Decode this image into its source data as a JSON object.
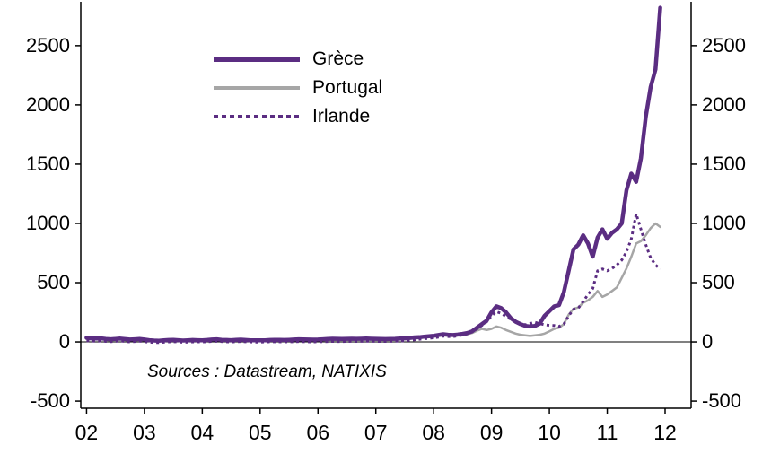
{
  "source_note": "Sources : Datastream, NATIXIS",
  "axes": {
    "ytick_labels": [
      "-500",
      "0",
      "500",
      "1000",
      "1500",
      "2000",
      "2500"
    ],
    "xtick_labels": [
      "02",
      "03",
      "04",
      "05",
      "06",
      "07",
      "08",
      "09",
      "10",
      "11",
      "12"
    ]
  },
  "chart_data": {
    "type": "line",
    "title": "",
    "xlabel": "",
    "ylabel": "",
    "grid": false,
    "legend_position": "top-left-inset",
    "x_start_year": 2002,
    "x_step": "monthly",
    "xlim": [
      2001.9,
      2012.45
    ],
    "ylim": [
      -560,
      2870
    ],
    "yticks": [
      -500,
      0,
      500,
      1000,
      1500,
      2000,
      2500
    ],
    "xticks": [
      2002,
      2003,
      2004,
      2005,
      2006,
      2007,
      2008,
      2009,
      2010,
      2011,
      2012
    ],
    "series": [
      {
        "name": "Grèce",
        "color": "#5b2d82",
        "style": "solid",
        "width": 4.5,
        "values": [
          35,
          30,
          28,
          30,
          25,
          22,
          25,
          28,
          24,
          20,
          22,
          25,
          20,
          15,
          12,
          10,
          14,
          16,
          18,
          15,
          12,
          14,
          16,
          15,
          14,
          16,
          20,
          22,
          18,
          16,
          15,
          17,
          19,
          16,
          14,
          13,
          13,
          14,
          16,
          18,
          17,
          16,
          18,
          20,
          22,
          21,
          20,
          19,
          20,
          22,
          25,
          27,
          26,
          25,
          26,
          27,
          26,
          27,
          28,
          27,
          26,
          25,
          24,
          25,
          26,
          28,
          30,
          34,
          38,
          40,
          44,
          48,
          52,
          58,
          65,
          60,
          58,
          62,
          68,
          75,
          90,
          120,
          150,
          180,
          250,
          300,
          285,
          250,
          200,
          170,
          150,
          135,
          130,
          135,
          155,
          220,
          260,
          300,
          310,
          420,
          600,
          780,
          820,
          900,
          830,
          720,
          880,
          950,
          870,
          920,
          950,
          1000,
          1280,
          1420,
          1350,
          1550,
          1900,
          2150,
          2300,
          2820
        ]
      },
      {
        "name": "Portugal",
        "color": "#a6a6a6",
        "style": "solid",
        "width": 2.5,
        "values": [
          25,
          22,
          20,
          22,
          18,
          16,
          18,
          20,
          17,
          15,
          16,
          18,
          15,
          12,
          10,
          8,
          10,
          12,
          14,
          12,
          10,
          11,
          13,
          12,
          11,
          12,
          14,
          15,
          13,
          12,
          11,
          12,
          13,
          12,
          11,
          10,
          10,
          11,
          12,
          13,
          12,
          12,
          13,
          14,
          15,
          14,
          13,
          13,
          14,
          15,
          16,
          17,
          16,
          16,
          17,
          18,
          17,
          18,
          19,
          18,
          18,
          17,
          17,
          18,
          19,
          20,
          22,
          26,
          30,
          32,
          36,
          40,
          45,
          50,
          55,
          52,
          50,
          54,
          58,
          64,
          75,
          95,
          110,
          100,
          110,
          130,
          120,
          100,
          85,
          70,
          60,
          55,
          50,
          55,
          60,
          70,
          90,
          110,
          120,
          150,
          230,
          280,
          290,
          330,
          350,
          380,
          430,
          380,
          400,
          430,
          460,
          540,
          620,
          720,
          830,
          850,
          900,
          960,
          1000,
          970
        ]
      },
      {
        "name": "Irlande",
        "color": "#5b2d82",
        "style": "dashed",
        "width": 3,
        "values": [
          10,
          8,
          5,
          8,
          4,
          2,
          5,
          8,
          4,
          0,
          3,
          6,
          2,
          -2,
          -5,
          -6,
          -3,
          0,
          2,
          0,
          -3,
          -2,
          0,
          1,
          0,
          2,
          4,
          5,
          3,
          1,
          0,
          2,
          3,
          1,
          0,
          -1,
          -2,
          0,
          1,
          2,
          1,
          0,
          1,
          2,
          3,
          2,
          1,
          0,
          1,
          2,
          3,
          4,
          3,
          3,
          4,
          5,
          4,
          5,
          6,
          5,
          5,
          4,
          4,
          5,
          6,
          8,
          10,
          14,
          18,
          22,
          26,
          30,
          35,
          40,
          48,
          45,
          44,
          50,
          58,
          68,
          85,
          110,
          140,
          170,
          220,
          255,
          240,
          215,
          190,
          170,
          155,
          145,
          155,
          165,
          155,
          145,
          140,
          138,
          130,
          150,
          220,
          275,
          285,
          340,
          400,
          450,
          600,
          615,
          600,
          620,
          650,
          690,
          760,
          870,
          1080,
          950,
          820,
          710,
          650,
          615
        ]
      }
    ]
  }
}
